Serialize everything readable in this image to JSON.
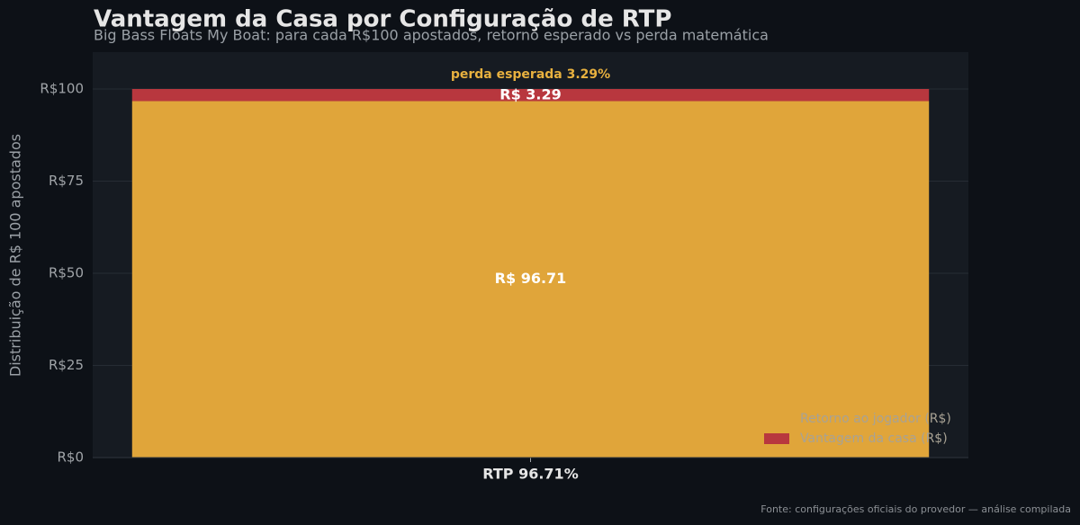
{
  "chart_data": {
    "type": "stacked_bar",
    "title": "Vantagem da Casa por Configuração de RTP",
    "subtitle": "Big Bass Floats My Boat: para cada R$100 apostados, retorno esperado vs perda matemática",
    "y_label": "Distribuição de R$ 100 apostados",
    "categories": [
      "RTP 96.71%"
    ],
    "series": [
      {
        "name": "Retorno ao jogador (R$)",
        "color": "#e0a53a",
        "values": [
          96.71
        ],
        "value_labels": [
          "R$ 96.71"
        ]
      },
      {
        "name": "Vantagem da casa (R$)",
        "color": "#b8373e",
        "values": [
          3.29
        ],
        "value_labels": [
          "R$ 3.29"
        ]
      }
    ],
    "annotation": "perda esperada 3.29%",
    "ylim": [
      0,
      110
    ],
    "yticks": [
      {
        "value": 0,
        "label": "R$0"
      },
      {
        "value": 25,
        "label": "R$25"
      },
      {
        "value": 50,
        "label": "R$50"
      },
      {
        "value": 75,
        "label": "R$75"
      },
      {
        "value": 100,
        "label": "R$100"
      }
    ],
    "grid": true,
    "legend": "lower right",
    "source": "Fonte: configurações oficiais do provedor — análise compilada"
  }
}
